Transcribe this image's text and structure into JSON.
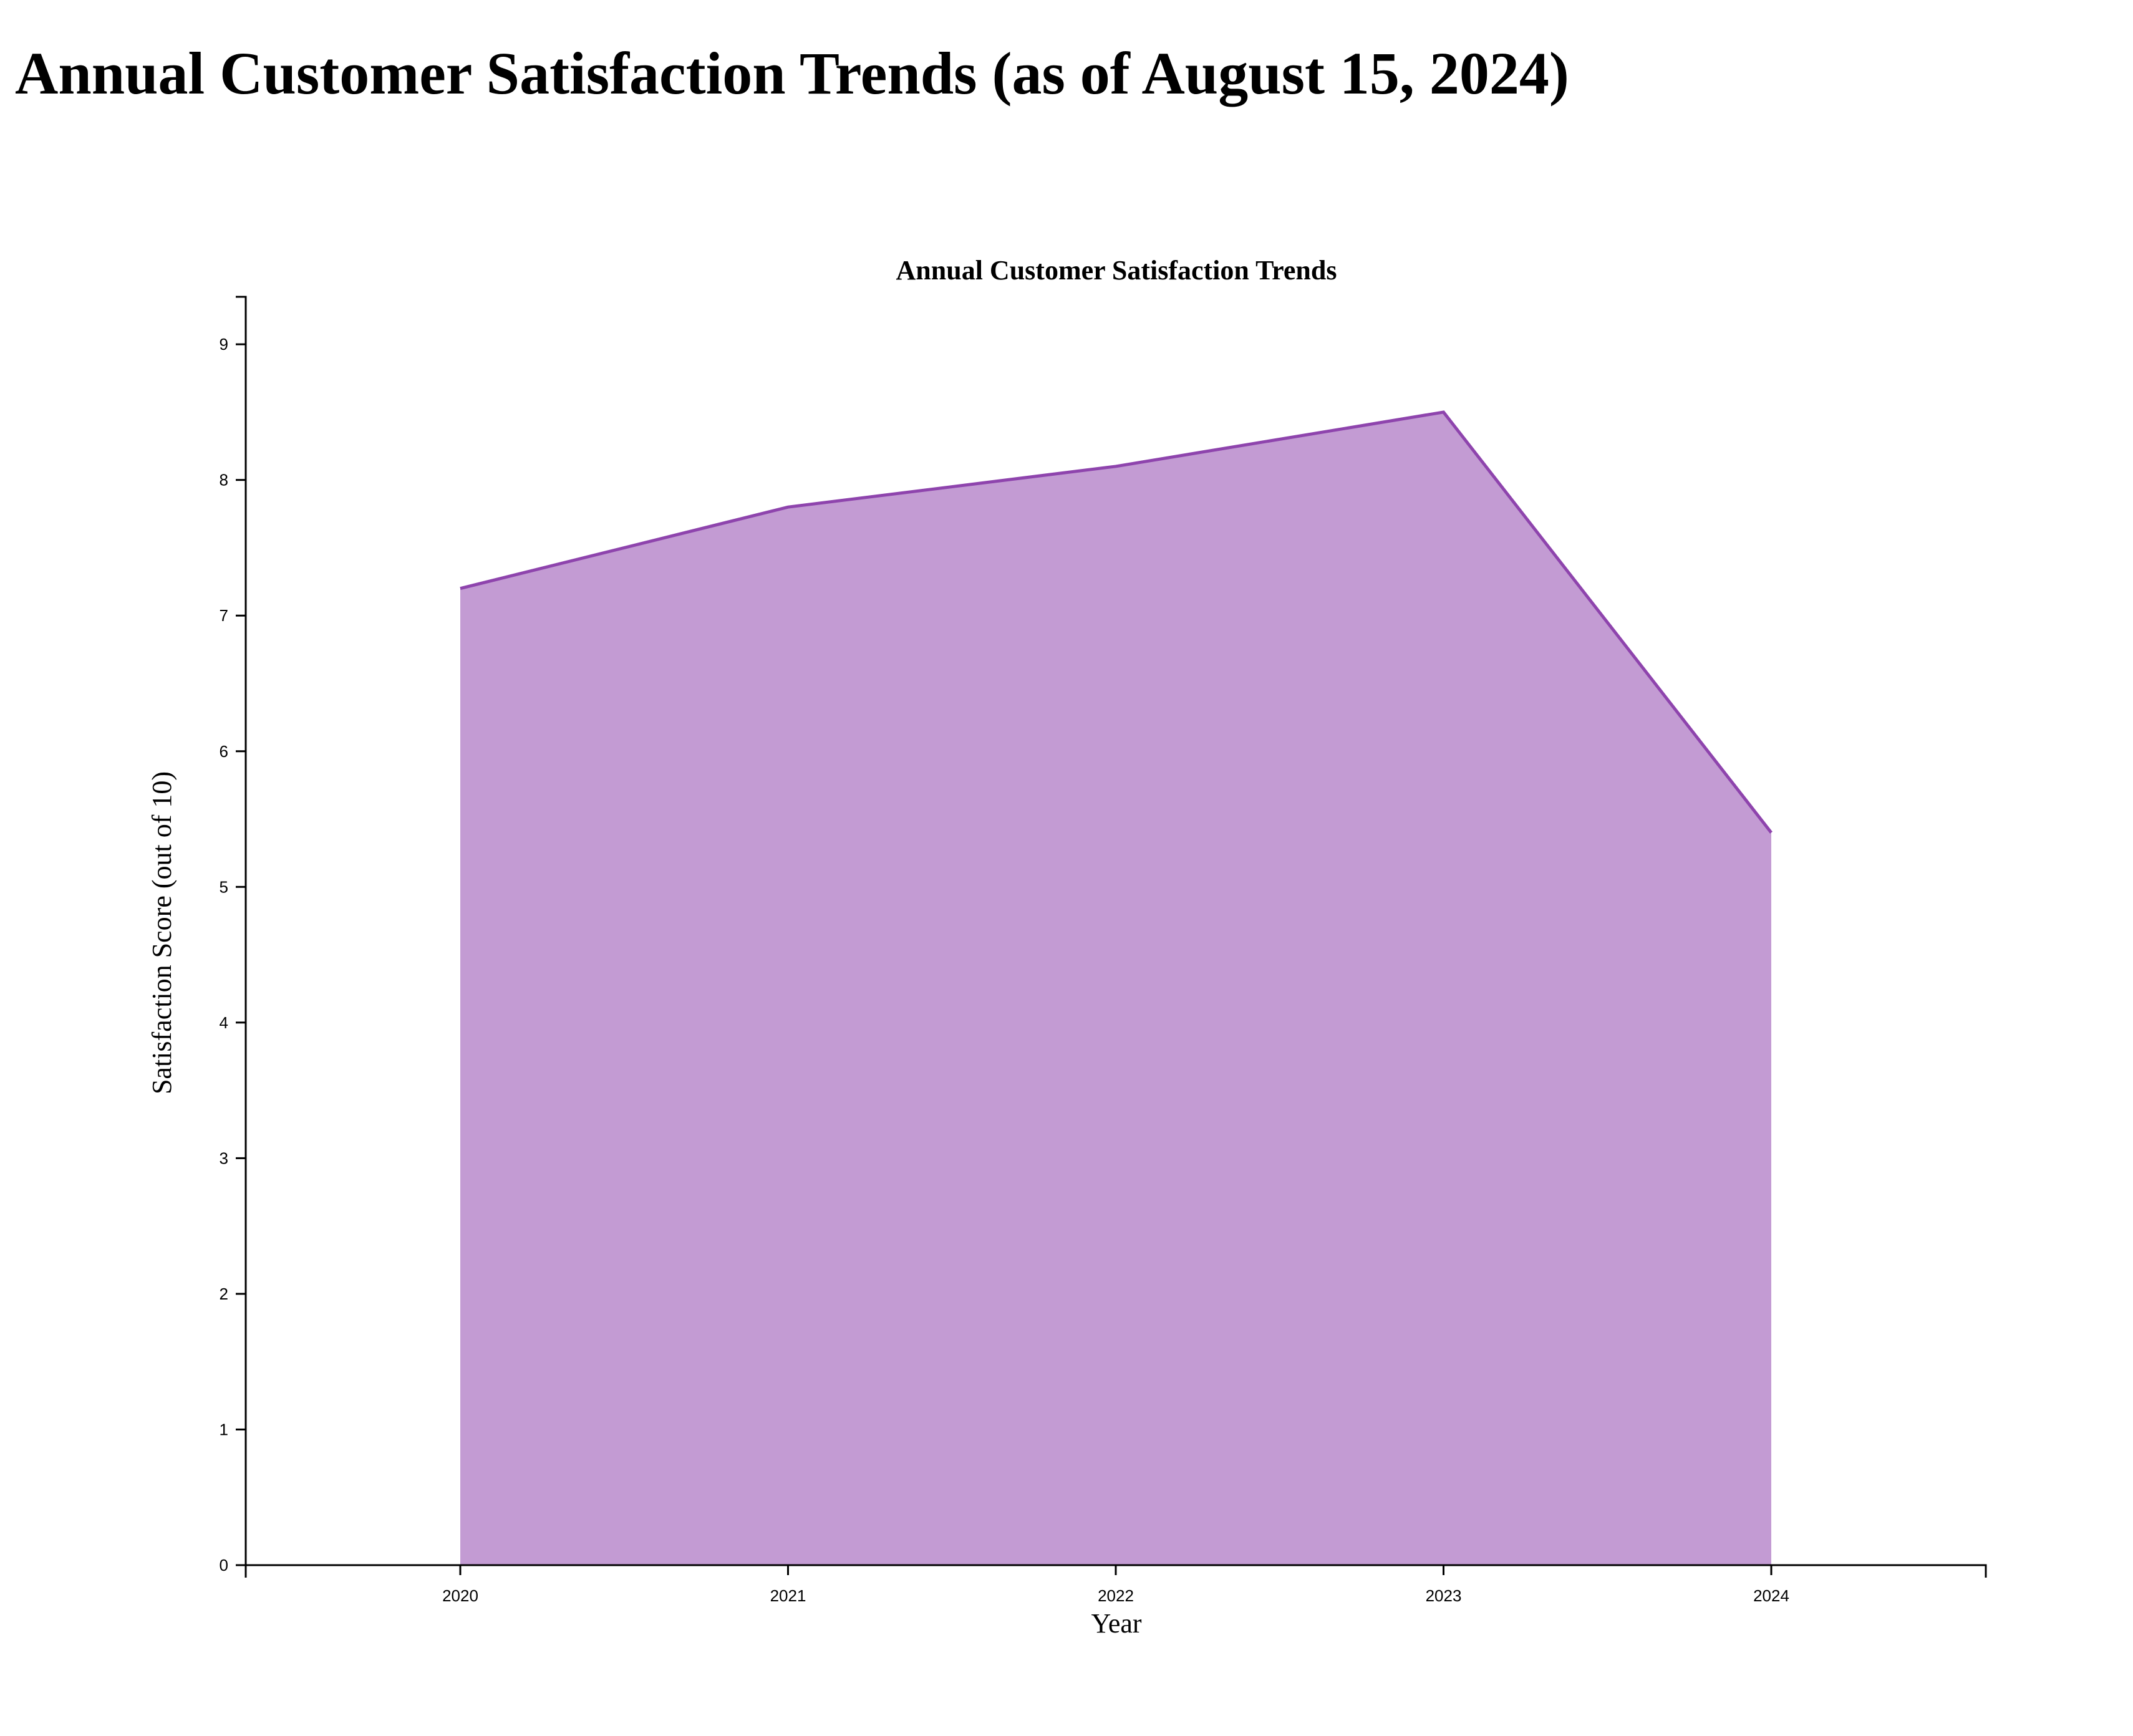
{
  "page": {
    "title": "Annual Customer Satisfaction Trends (as of August 15, 2024)"
  },
  "colors": {
    "area_fill": "#c39bd3",
    "line_stroke": "#8e44ad",
    "axis": "#000000"
  },
  "chart_data": {
    "type": "area",
    "title": "Annual Customer Satisfaction Trends",
    "xlabel": "Year",
    "ylabel": "Satisfaction Score (out of 10)",
    "categories": [
      "2020",
      "2021",
      "2022",
      "2023",
      "2024"
    ],
    "series": [
      {
        "values": [
          7.2,
          7.8,
          8.1,
          8.5,
          5.4
        ]
      }
    ],
    "ylim": [
      0,
      9.35
    ],
    "yticks": [
      0,
      1,
      2,
      3,
      4,
      5,
      6,
      7,
      8,
      9
    ],
    "grid": false,
    "legend": "none"
  }
}
